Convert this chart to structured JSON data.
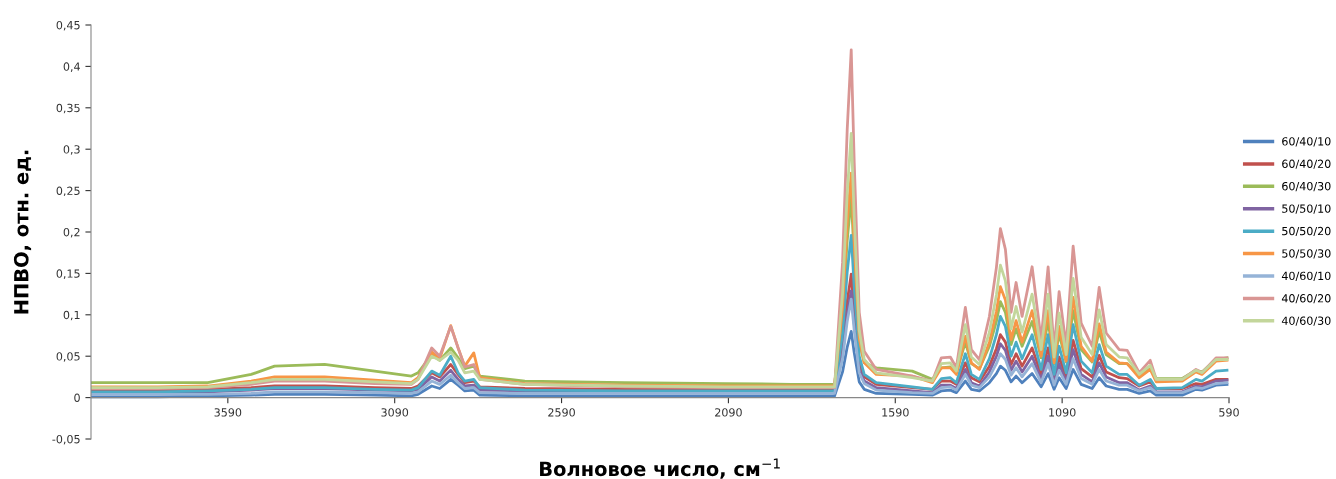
{
  "chart_data": {
    "type": "line",
    "xlabel": "Волновое число, см$^{−1}$",
    "ylabel": "НПВО, отн. ед.",
    "xlim": [
      4000,
      590
    ],
    "xticks": [
      3590,
      3090,
      2590,
      2090,
      1590,
      1090,
      590
    ],
    "ylim": [
      -0.05,
      0.45
    ],
    "yticks": [
      {
        "value": -0.05,
        "label": "-0,05"
      },
      0,
      {
        "value": 0.05,
        "label": "0,05"
      },
      {
        "value": 0.1,
        "label": "0,1"
      },
      {
        "value": 0.15,
        "label": "0,15"
      },
      {
        "value": 0.2,
        "label": "0,2"
      },
      {
        "value": 0.25,
        "label": "0,25"
      },
      {
        "value": 0.3,
        "label": "0,3"
      },
      {
        "value": 0.35,
        "label": "0,35"
      },
      {
        "value": 0.4,
        "label": "0,4"
      },
      {
        "value": 0.45,
        "label": "0,45"
      }
    ],
    "grid": false,
    "legend": "right",
    "marker": "none",
    "line_style": "solid",
    "x": [
      4000,
      3800,
      3650,
      3520,
      3450,
      3300,
      3150,
      3040,
      3020,
      2979,
      2955,
      2922,
      2900,
      2880,
      2853,
      2835,
      2700,
      2400,
      2100,
      1900,
      1772,
      1748,
      1734,
      1722,
      1713,
      1698,
      1683,
      1647,
      1539,
      1479,
      1452,
      1425,
      1407,
      1380,
      1362,
      1338,
      1308,
      1287,
      1275,
      1260,
      1243,
      1228,
      1210,
      1180,
      1153,
      1132,
      1114,
      1099,
      1078,
      1057,
      1033,
      1000,
      979,
      958,
      919,
      895,
      859,
      826,
      808,
      730,
      689,
      671,
      629,
      596
    ],
    "series": [
      {
        "name": "60/40/10",
        "color": "#4f81bd",
        "values": [
          0.001,
          0.001,
          0.002,
          0.003,
          0.004,
          0.004,
          0.003,
          0.002,
          0.004,
          0.014,
          0.011,
          0.022,
          0.015,
          0.008,
          0.009,
          0.003,
          0.002,
          0.002,
          0.002,
          0.002,
          0.002,
          0.031,
          0.061,
          0.08,
          0.054,
          0.019,
          0.01,
          0.005,
          0.004,
          0.003,
          0.008,
          0.009,
          0.006,
          0.02,
          0.01,
          0.008,
          0.018,
          0.029,
          0.038,
          0.033,
          0.019,
          0.026,
          0.018,
          0.029,
          0.013,
          0.029,
          0.01,
          0.024,
          0.011,
          0.034,
          0.016,
          0.011,
          0.024,
          0.014,
          0.01,
          0.01,
          0.005,
          0.008,
          0.003,
          0.003,
          0.01,
          0.009,
          0.015,
          0.016
        ]
      },
      {
        "name": "60/40/20",
        "color": "#c0504d",
        "values": [
          0.009,
          0.009,
          0.01,
          0.012,
          0.014,
          0.014,
          0.012,
          0.011,
          0.014,
          0.03,
          0.025,
          0.04,
          0.028,
          0.018,
          0.02,
          0.013,
          0.011,
          0.01,
          0.01,
          0.01,
          0.01,
          0.061,
          0.116,
          0.149,
          0.102,
          0.041,
          0.025,
          0.016,
          0.012,
          0.01,
          0.02,
          0.02,
          0.016,
          0.042,
          0.024,
          0.019,
          0.038,
          0.059,
          0.076,
          0.067,
          0.04,
          0.053,
          0.038,
          0.06,
          0.028,
          0.06,
          0.024,
          0.049,
          0.025,
          0.069,
          0.035,
          0.025,
          0.051,
          0.031,
          0.024,
          0.023,
          0.014,
          0.019,
          0.011,
          0.011,
          0.017,
          0.016,
          0.022,
          0.022
        ]
      },
      {
        "name": "60/40/30",
        "color": "#9bbb59",
        "values": [
          0.018,
          0.018,
          0.018,
          0.028,
          0.038,
          0.04,
          0.032,
          0.026,
          0.03,
          0.052,
          0.045,
          0.06,
          0.048,
          0.035,
          0.038,
          0.026,
          0.02,
          0.018,
          0.017,
          0.016,
          0.016,
          0.1,
          0.19,
          0.242,
          0.168,
          0.068,
          0.042,
          0.036,
          0.032,
          0.022,
          0.036,
          0.037,
          0.03,
          0.067,
          0.041,
          0.035,
          0.062,
          0.092,
          0.116,
          0.103,
          0.064,
          0.083,
          0.062,
          0.092,
          0.048,
          0.092,
          0.041,
          0.077,
          0.043,
          0.105,
          0.058,
          0.043,
          0.08,
          0.052,
          0.041,
          0.041,
          0.027,
          0.035,
          0.023,
          0.023,
          0.033,
          0.031,
          0.046,
          0.048
        ]
      },
      {
        "name": "50/50/10",
        "color": "#8064a2",
        "values": [
          0.006,
          0.006,
          0.007,
          0.009,
          0.011,
          0.011,
          0.009,
          0.008,
          0.01,
          0.025,
          0.02,
          0.033,
          0.022,
          0.014,
          0.015,
          0.009,
          0.008,
          0.007,
          0.007,
          0.007,
          0.007,
          0.052,
          0.101,
          0.129,
          0.089,
          0.034,
          0.02,
          0.012,
          0.008,
          0.006,
          0.015,
          0.015,
          0.011,
          0.034,
          0.018,
          0.014,
          0.031,
          0.05,
          0.065,
          0.057,
          0.033,
          0.044,
          0.031,
          0.05,
          0.022,
          0.05,
          0.018,
          0.041,
          0.019,
          0.058,
          0.028,
          0.019,
          0.042,
          0.025,
          0.018,
          0.018,
          0.009,
          0.014,
          0.007,
          0.007,
          0.014,
          0.013,
          0.02,
          0.021
        ]
      },
      {
        "name": "50/50/20",
        "color": "#4bacc6",
        "values": [
          0.007,
          0.007,
          0.008,
          0.01,
          0.012,
          0.012,
          0.01,
          0.009,
          0.012,
          0.032,
          0.027,
          0.05,
          0.03,
          0.02,
          0.022,
          0.012,
          0.009,
          0.008,
          0.008,
          0.008,
          0.008,
          0.077,
          0.152,
          0.196,
          0.133,
          0.05,
          0.028,
          0.018,
          0.013,
          0.01,
          0.023,
          0.024,
          0.018,
          0.053,
          0.028,
          0.022,
          0.047,
          0.076,
          0.098,
          0.086,
          0.05,
          0.067,
          0.047,
          0.076,
          0.034,
          0.076,
          0.028,
          0.062,
          0.03,
          0.088,
          0.044,
          0.03,
          0.064,
          0.038,
          0.028,
          0.028,
          0.015,
          0.022,
          0.011,
          0.012,
          0.022,
          0.02,
          0.032,
          0.033
        ]
      },
      {
        "name": "50/50/30",
        "color": "#f79646",
        "values": [
          0.013,
          0.013,
          0.014,
          0.02,
          0.025,
          0.025,
          0.021,
          0.018,
          0.024,
          0.055,
          0.047,
          0.087,
          0.06,
          0.038,
          0.054,
          0.024,
          0.017,
          0.015,
          0.014,
          0.014,
          0.014,
          0.109,
          0.211,
          0.271,
          0.185,
          0.071,
          0.042,
          0.028,
          0.026,
          0.018,
          0.036,
          0.036,
          0.028,
          0.074,
          0.042,
          0.034,
          0.067,
          0.104,
          0.134,
          0.118,
          0.07,
          0.093,
          0.067,
          0.105,
          0.05,
          0.105,
          0.042,
          0.086,
          0.044,
          0.121,
          0.062,
          0.044,
          0.089,
          0.055,
          0.042,
          0.041,
          0.024,
          0.034,
          0.019,
          0.02,
          0.031,
          0.028,
          0.044,
          0.045
        ]
      },
      {
        "name": "40/60/10",
        "color": "#95b3d7",
        "values": [
          0.004,
          0.004,
          0.004,
          0.005,
          0.007,
          0.007,
          0.006,
          0.005,
          0.007,
          0.02,
          0.016,
          0.027,
          0.018,
          0.011,
          0.012,
          0.006,
          0.005,
          0.005,
          0.005,
          0.005,
          0.005,
          0.047,
          0.092,
          0.119,
          0.081,
          0.03,
          0.017,
          0.009,
          0.006,
          0.005,
          0.012,
          0.013,
          0.009,
          0.028,
          0.015,
          0.012,
          0.025,
          0.041,
          0.053,
          0.046,
          0.027,
          0.036,
          0.025,
          0.041,
          0.018,
          0.041,
          0.015,
          0.033,
          0.016,
          0.047,
          0.023,
          0.016,
          0.034,
          0.02,
          0.015,
          0.015,
          0.008,
          0.012,
          0.006,
          0.006,
          0.012,
          0.011,
          0.017,
          0.018
        ]
      },
      {
        "name": "40/60/20",
        "color": "#d99694",
        "values": [
          0.011,
          0.011,
          0.012,
          0.016,
          0.02,
          0.02,
          0.017,
          0.016,
          0.022,
          0.06,
          0.05,
          0.086,
          0.06,
          0.037,
          0.04,
          0.022,
          0.016,
          0.013,
          0.012,
          0.012,
          0.012,
          0.163,
          0.324,
          0.42,
          0.284,
          0.103,
          0.056,
          0.034,
          0.026,
          0.02,
          0.048,
          0.049,
          0.036,
          0.109,
          0.058,
          0.046,
          0.098,
          0.157,
          0.204,
          0.179,
          0.103,
          0.139,
          0.098,
          0.158,
          0.07,
          0.158,
          0.058,
          0.128,
          0.062,
          0.183,
          0.09,
          0.062,
          0.133,
          0.078,
          0.058,
          0.057,
          0.03,
          0.045,
          0.022,
          0.022,
          0.034,
          0.03,
          0.048,
          0.048
        ]
      },
      {
        "name": "40/60/30",
        "color": "#c3d69b",
        "values": [
          0.012,
          0.012,
          0.013,
          0.018,
          0.022,
          0.022,
          0.019,
          0.017,
          0.022,
          0.05,
          0.045,
          0.055,
          0.045,
          0.03,
          0.032,
          0.022,
          0.016,
          0.014,
          0.013,
          0.013,
          0.013,
          0.126,
          0.247,
          0.319,
          0.217,
          0.081,
          0.046,
          0.03,
          0.024,
          0.02,
          0.041,
          0.042,
          0.032,
          0.088,
          0.049,
          0.04,
          0.079,
          0.124,
          0.16,
          0.141,
          0.083,
          0.11,
          0.079,
          0.125,
          0.058,
          0.125,
          0.049,
          0.102,
          0.052,
          0.144,
          0.073,
          0.052,
          0.106,
          0.064,
          0.049,
          0.048,
          0.028,
          0.039,
          0.022,
          0.022,
          0.033,
          0.03,
          0.046,
          0.046
        ]
      }
    ]
  }
}
